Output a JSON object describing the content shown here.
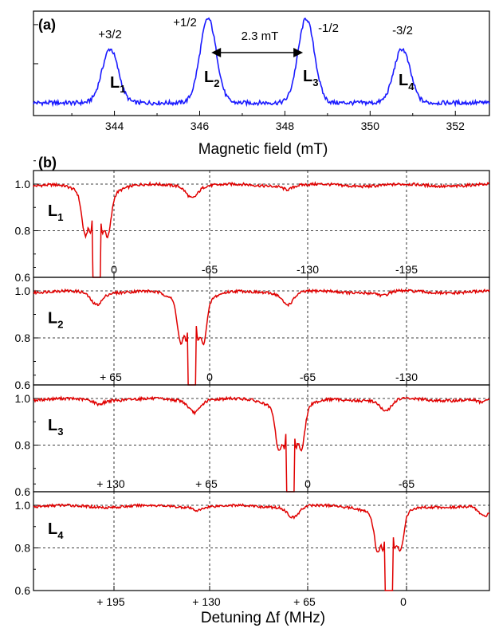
{
  "chart_data": [
    {
      "type": "line",
      "panel_label": "(a)",
      "xlabel": "Magnetic field  (mT)",
      "xlim": [
        342.1,
        352.8
      ],
      "x_ticks": [
        "344",
        "346",
        "348",
        "350",
        "352"
      ],
      "ylim": [
        0,
        1
      ],
      "color": "#1a1aff",
      "peaks": [
        {
          "center": 343.9,
          "height": 0.62,
          "transition": "+3/2",
          "line": "L",
          "sub": "1"
        },
        {
          "center": 346.2,
          "height": 0.97,
          "transition": "+1/2",
          "line": "L",
          "sub": "2"
        },
        {
          "center": 348.5,
          "height": 0.97,
          "transition": "-1/2",
          "line": "L",
          "sub": "3"
        },
        {
          "center": 350.75,
          "height": 0.62,
          "transition": "-3/2",
          "line": "L",
          "sub": "4"
        }
      ],
      "splitting_label": "2.3 mT"
    },
    {
      "type": "line",
      "panel_label": "(b)",
      "xlabel": "Detuning  Δf  (MHz)",
      "x_ticks": [
        "+  195",
        "+  130",
        "+  65",
        "0"
      ],
      "color": "#e00000",
      "grid": true,
      "panels": [
        {
          "line": "L",
          "sub": "1",
          "ylim": [
            0.6,
            1.02
          ],
          "y_ticks": [
            "1.0",
            "0.8",
            "0.6"
          ],
          "offset_labels": [
            "0",
            "-65",
            "-130",
            "-195"
          ],
          "burn_index": 0
        },
        {
          "line": "L",
          "sub": "2",
          "ylim": [
            0.6,
            1.02
          ],
          "y_ticks": [
            "1.0",
            "0.8",
            "0.6"
          ],
          "offset_labels": [
            "+  65",
            "0",
            "-65",
            "-130"
          ],
          "burn_index": 1
        },
        {
          "line": "L",
          "sub": "3",
          "ylim": [
            0.6,
            1.02
          ],
          "y_ticks": [
            "1.0",
            "0.8",
            "0.6"
          ],
          "offset_labels": [
            "+  130",
            "+  65",
            "0",
            "-65"
          ],
          "burn_index": 2
        },
        {
          "line": "L",
          "sub": "4",
          "ylim": [
            0.6,
            1.02
          ],
          "y_ticks": [
            "1.0",
            "0.8",
            "0.6"
          ],
          "offset_labels": [],
          "burn_index": 3
        }
      ]
    }
  ]
}
